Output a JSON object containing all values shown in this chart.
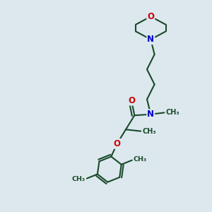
{
  "background_color": "#dce8ee",
  "bond_color": "#1a4a2a",
  "atom_O_color": "#cc0000",
  "atom_N_color": "#0000cc",
  "bond_width": 1.5,
  "font_size_atom": 8.5,
  "fig_width": 3.0,
  "fig_height": 3.0,
  "dpi": 100,
  "xlim": [
    0,
    10
  ],
  "ylim": [
    0,
    10
  ]
}
